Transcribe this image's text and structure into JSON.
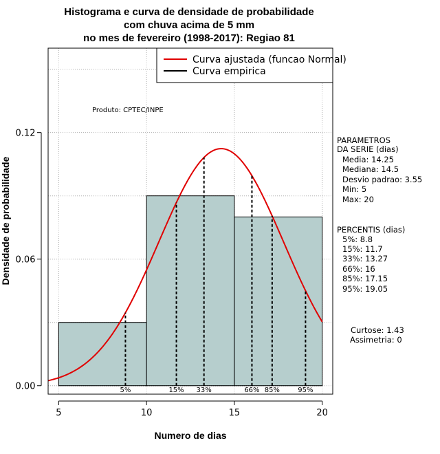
{
  "chart_data": {
    "type": "bar",
    "title_lines": [
      "Histograma e curva de densidade de probabilidade",
      "com chuva acima de 5 mm",
      "no mes de fevereiro (1998-2017): Regiao 81"
    ],
    "xlabel": "Numero de dias",
    "ylabel": "Densidade de probabilidade",
    "xlim": [
      4.4,
      20.6
    ],
    "ylim": [
      -0.004,
      0.16
    ],
    "xticks": [
      5,
      10,
      15,
      20
    ],
    "yticks": [
      0.0,
      0.06,
      0.12
    ],
    "ytick_labels": [
      "0.00",
      "0.06",
      "0.12"
    ],
    "grid": true,
    "bins": [
      {
        "start": 5,
        "end": 10,
        "density": 0.03
      },
      {
        "start": 10,
        "end": 15,
        "density": 0.09
      },
      {
        "start": 15,
        "end": 20,
        "density": 0.08
      }
    ],
    "normal_curve": {
      "mean": 14.25,
      "sd": 3.55,
      "x_start": 4.4,
      "x_end": 20.0
    },
    "percentile_lines": [
      {
        "label": "5%",
        "x": 8.8
      },
      {
        "label": "15%",
        "x": 11.7
      },
      {
        "label": "33%",
        "x": 13.27
      },
      {
        "label": "66%",
        "x": 16
      },
      {
        "label": "85%",
        "x": 17.15
      },
      {
        "label": "95%",
        "x": 19.05
      }
    ],
    "legend": {
      "position": "top-right",
      "entries": [
        {
          "label": "Curva ajustada (funcao Normal)",
          "color": "#e00000"
        },
        {
          "label": "Curva empirica",
          "color": "#000000"
        }
      ]
    },
    "annotation": "Produto: CPTEC/INPE",
    "bar_color": "#b6cecd",
    "curve_color": "#e00000"
  },
  "side_panel": {
    "parametros": [
      "PARAMETROS",
      "DA SERIE (dias)",
      "Media: 14.25",
      "Mediana: 14.5",
      "Desvio padrao: 3.55",
      "Min: 5",
      "Max: 20"
    ],
    "percentis": [
      "PERCENTIS (dias)",
      "5%: 8.8",
      "15%: 11.7",
      "33%: 13.27",
      "66%: 16",
      "85%: 17.15",
      "95%: 19.05"
    ],
    "stats": [
      "Curtose: 1.43",
      "Assimetria: 0"
    ]
  }
}
